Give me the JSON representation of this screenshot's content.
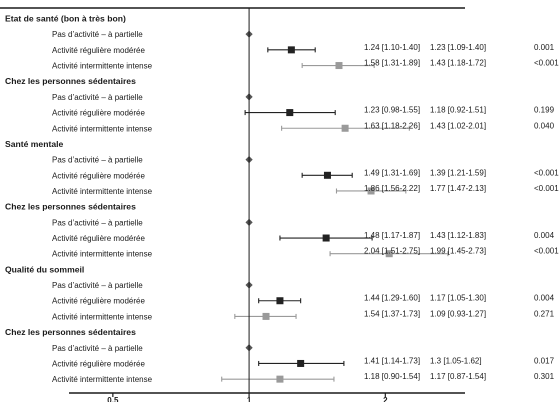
{
  "chart_data": {
    "type": "forest",
    "xlim": [
      0.4,
      3.0
    ],
    "log_scale": true,
    "reference_line": 1,
    "colors": {
      "marker_primary": "#222222",
      "marker_secondary": "#9a9a9a",
      "reference_marker": "#555555",
      "axis": "#1a1a1a"
    },
    "x_ticks": [
      {
        "value": 0.5,
        "label": "0.5"
      },
      {
        "value": 1,
        "label": "1"
      },
      {
        "value": 2,
        "label": "2"
      }
    ],
    "rows": [
      {
        "kind": "header",
        "label": "Etat de santé (bon à très bon)"
      },
      {
        "kind": "ref",
        "label": "Pas d’activité – à partielle"
      },
      {
        "kind": "est",
        "label": "Activité régulière modérée",
        "est": 1.24,
        "lo": 1.1,
        "hi": 1.4,
        "col1": "1.24 [1.10-1.40]",
        "col2": "1.23 [1.09-1.40]",
        "p": "0.001",
        "marker": "primary"
      },
      {
        "kind": "est",
        "label": "Activité intermittente intense",
        "est": 1.58,
        "lo": 1.31,
        "hi": 1.89,
        "col1": "1.58 [1.31-1.89]",
        "col2": "1.43 [1.18-1.72]",
        "p": "<0.001",
        "marker": "secondary"
      },
      {
        "kind": "header",
        "label": "Chez les personnes sédentaires"
      },
      {
        "kind": "ref",
        "label": "Pas d’activité – à partielle"
      },
      {
        "kind": "est",
        "label": "Activité régulière modérée",
        "est": 1.23,
        "lo": 0.98,
        "hi": 1.55,
        "col1": "1.23 [0.98-1.55]",
        "col2": "1.18 [0.92-1.51]",
        "p": "0.199",
        "marker": "primary"
      },
      {
        "kind": "est",
        "label": "Activité intermittente intense",
        "est": 1.63,
        "lo": 1.18,
        "hi": 2.26,
        "col1": "1.63 [1.18-2.26]",
        "col2": "1.43 [1.02-2.01]",
        "p": "0.040",
        "marker": "secondary"
      },
      {
        "kind": "header",
        "label": "Santé mentale"
      },
      {
        "kind": "ref",
        "label": "Pas d’activité – à partielle"
      },
      {
        "kind": "est",
        "label": "Activité régulière modérée",
        "est": 1.49,
        "lo": 1.31,
        "hi": 1.69,
        "col1": "1.49 [1.31-1.69]",
        "col2": "1.39 [1.21-1.59]",
        "p": "<0.001",
        "marker": "primary"
      },
      {
        "kind": "est",
        "label": "Activité intermittente intense",
        "est": 1.86,
        "lo": 1.56,
        "hi": 2.22,
        "col1": "1.86 [1.56-2.22]",
        "col2": "1.77 [1.47-2.13]",
        "p": "<0.001",
        "marker": "secondary"
      },
      {
        "kind": "header",
        "label": "Chez les personnes sédentaires"
      },
      {
        "kind": "ref",
        "label": "Pas d’activité – à partielle"
      },
      {
        "kind": "est",
        "label": "Activité régulière modérée",
        "est": 1.48,
        "lo": 1.17,
        "hi": 1.87,
        "col1": "1.48 [1.17-1.87]",
        "col2": "1.43 [1.12-1.83]",
        "p": "0.004",
        "marker": "primary"
      },
      {
        "kind": "est",
        "label": "Activité intermittente intense",
        "est": 2.04,
        "lo": 1.51,
        "hi": 2.75,
        "col1": "2.04 [1.51-2.75]",
        "col2": "1.99 [1.45-2.73]",
        "p": "<0.001",
        "marker": "secondary"
      },
      {
        "kind": "header",
        "label": "Qualité du sommeil"
      },
      {
        "kind": "ref",
        "label": "Pas d’activité – à partielle"
      },
      {
        "kind": "est",
        "label": "Activité régulière modérée",
        "est": 1.17,
        "lo": 1.05,
        "hi": 1.3,
        "col1": "1.44 [1.29-1.60]",
        "col2": "1.17 [1.05-1.30]",
        "p": "0.004",
        "marker": "primary"
      },
      {
        "kind": "est",
        "label": "Activité intermittente intense",
        "est": 1.09,
        "lo": 0.93,
        "hi": 1.27,
        "col1": "1.54 [1.37-1.73]",
        "col2": "1.09 [0.93-1.27]",
        "p": "0.271",
        "marker": "secondary"
      },
      {
        "kind": "header",
        "label": "Chez les personnes sédentaires"
      },
      {
        "kind": "ref",
        "label": "Pas d’activité – à partielle"
      },
      {
        "kind": "est",
        "label": "Activité régulière modérée",
        "est": 1.3,
        "lo": 1.05,
        "hi": 1.62,
        "col1": "1.41 [1.14-1.73]",
        "col2": "1.3 [1.05-1.62]",
        "p": "0.017",
        "marker": "primary"
      },
      {
        "kind": "est",
        "label": "Activité intermittente intense",
        "est": 1.17,
        "lo": 0.87,
        "hi": 1.54,
        "col1": "1.18 [0.90-1.54]",
        "col2": "1.17 [0.87-1.54]",
        "p": "0.301",
        "marker": "secondary"
      }
    ]
  }
}
